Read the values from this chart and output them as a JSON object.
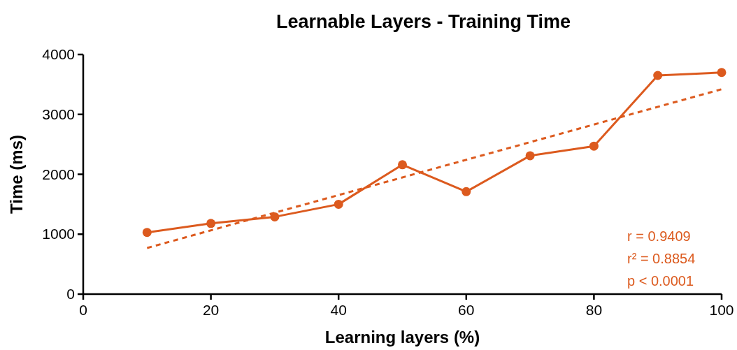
{
  "chart_data": {
    "type": "line",
    "title": "Learnable Layers - Training Time",
    "xlabel": "Learning layers (%)",
    "ylabel": "Time (ms)",
    "xlim": [
      0,
      100
    ],
    "xticks": [
      0,
      20,
      40,
      60,
      80,
      100
    ],
    "ylim": [
      0,
      4000
    ],
    "yticks": [
      0,
      1000,
      2000,
      3000,
      4000
    ],
    "grid": false,
    "annotations": [
      "r = 0.9409",
      "r² = 0.8854",
      "p < 0.0001"
    ],
    "series": [
      {
        "color": "#dc5a1e",
        "x": [
          10,
          20,
          30,
          40,
          50,
          60,
          70,
          80,
          90,
          100
        ],
        "values": [
          1030,
          1180,
          1290,
          1500,
          2160,
          1710,
          2310,
          2470,
          3650,
          3700
        ],
        "marker": "circle",
        "line_style": "solid"
      },
      {
        "type": "line",
        "color": "#dc5a1e",
        "x": [
          10,
          100
        ],
        "values": [
          770,
          3420
        ],
        "marker": "none",
        "line_style": "dashed"
      }
    ]
  }
}
